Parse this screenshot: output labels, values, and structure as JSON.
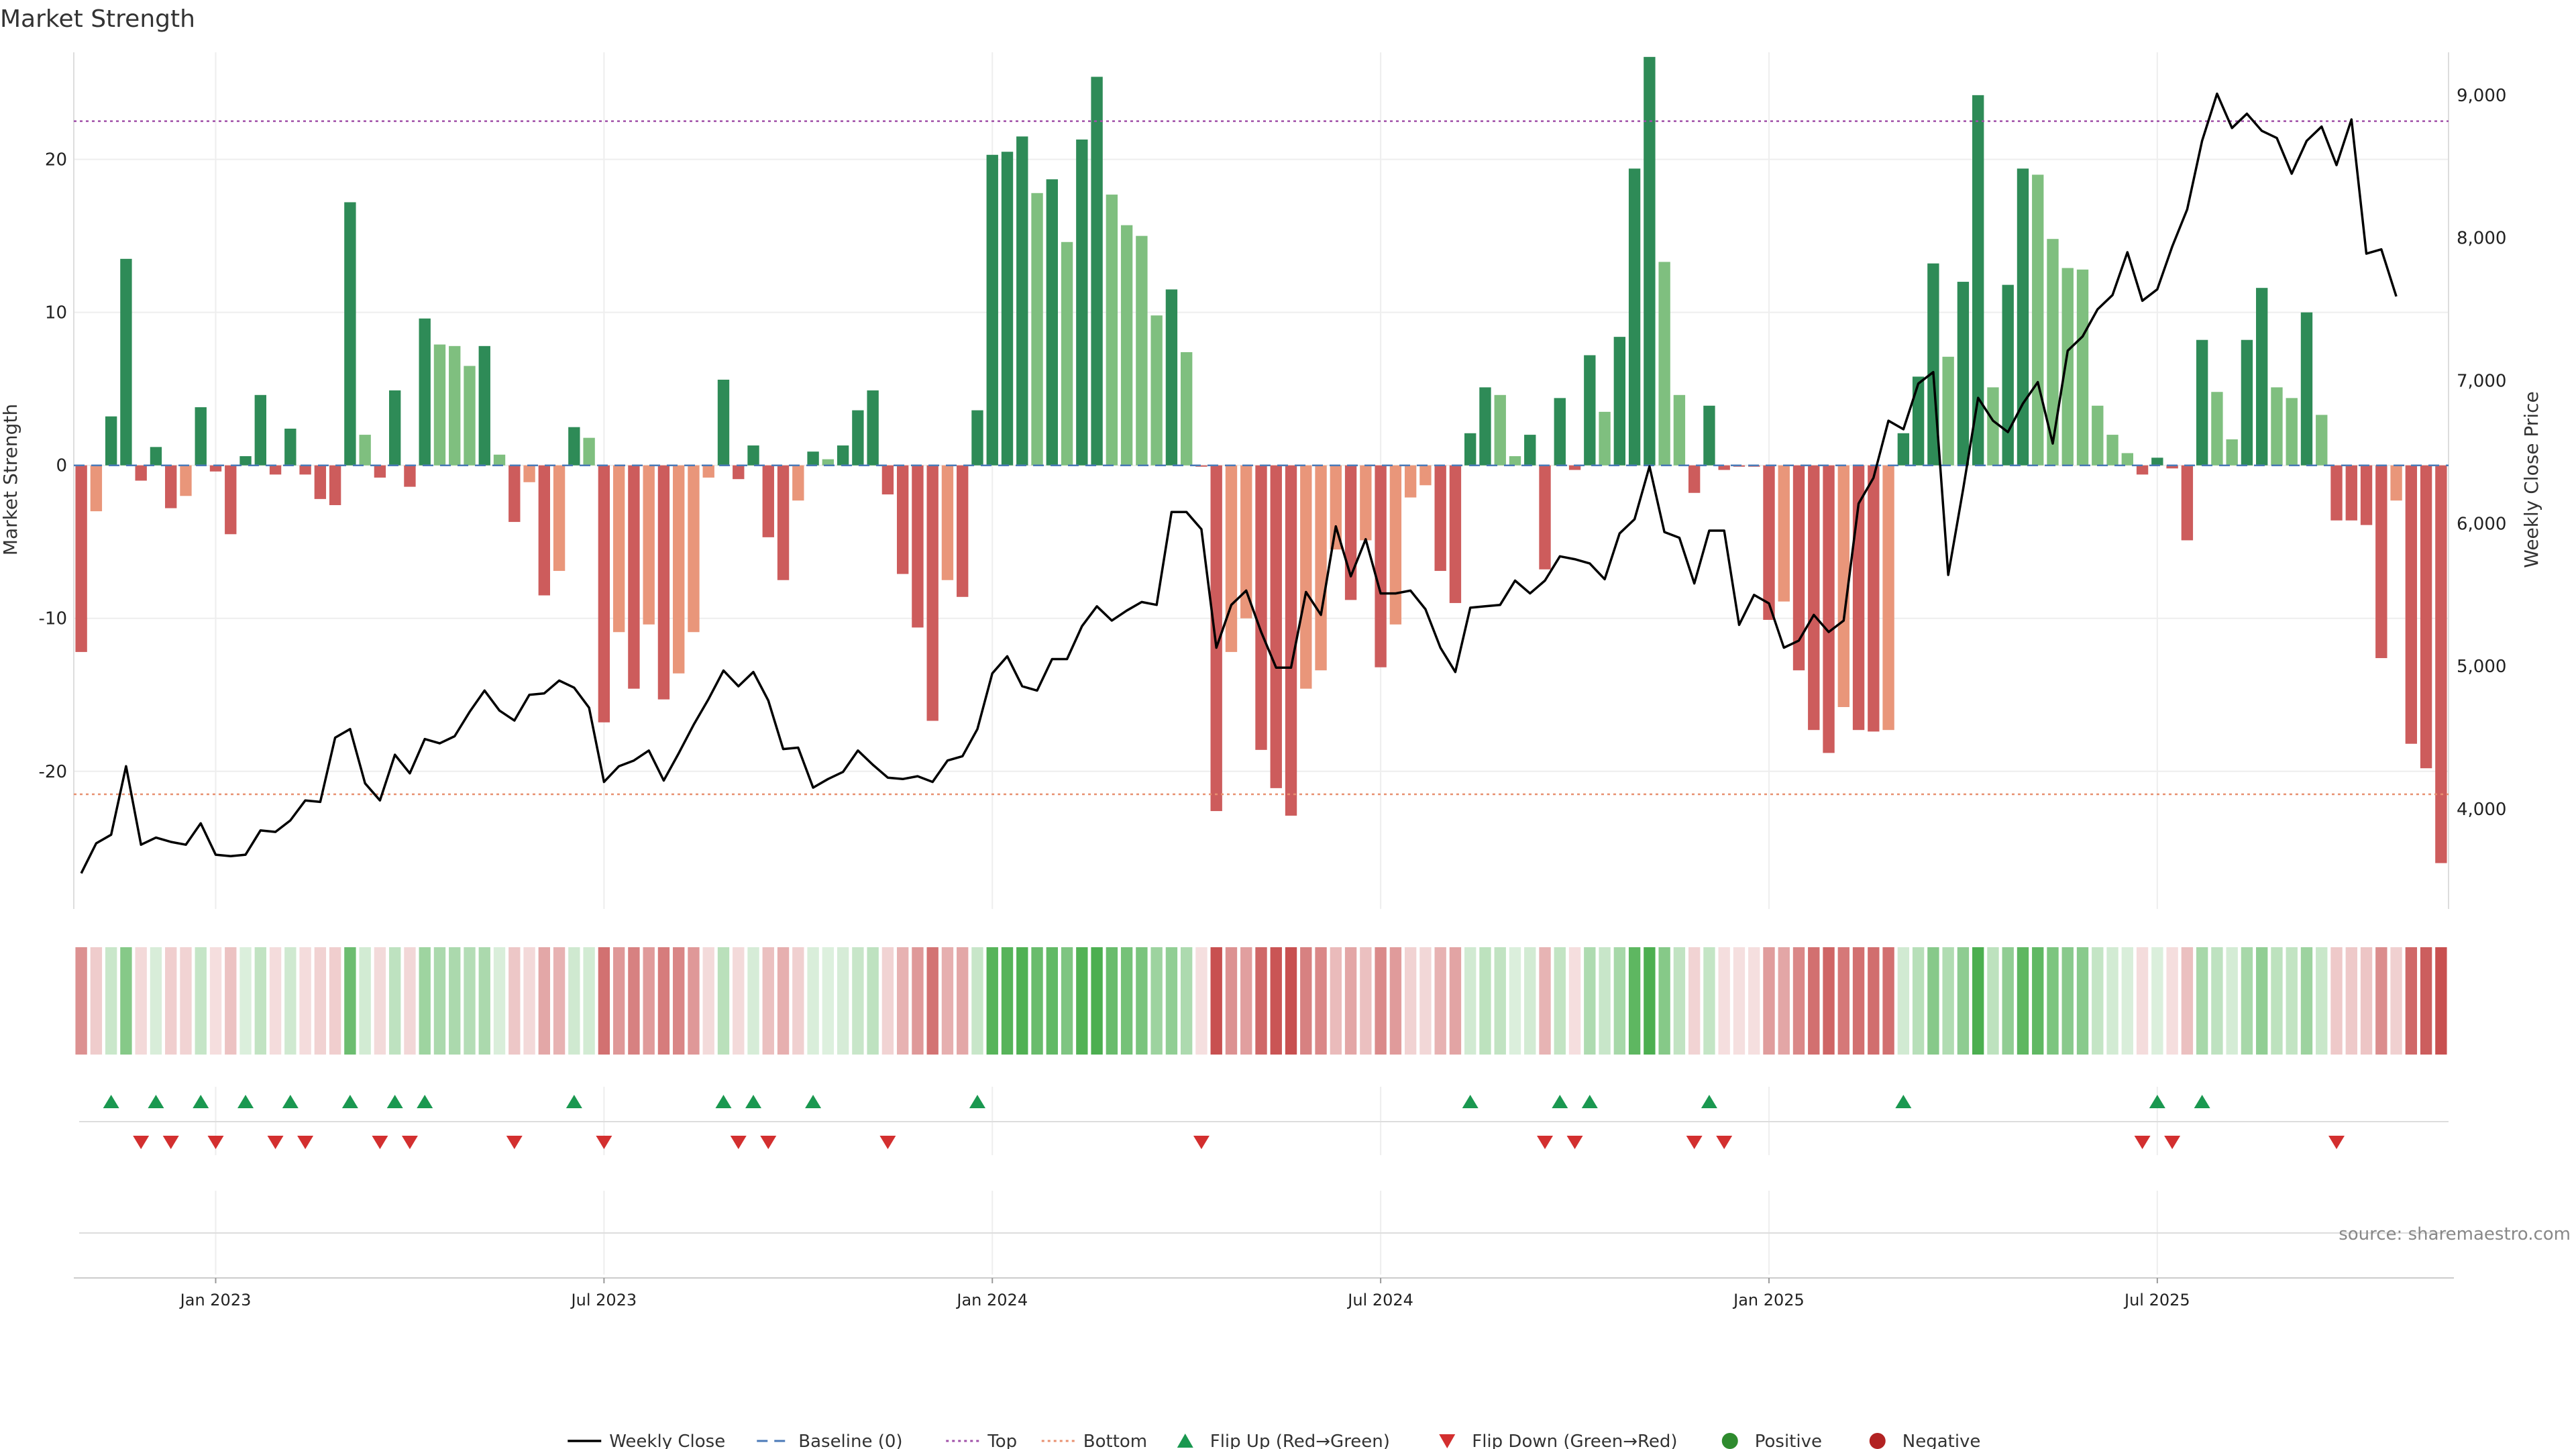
{
  "chart_data": {
    "title": "Market Strength",
    "type": "bar",
    "ylabel": "Market Strength",
    "y2label": "Weekly Close Price",
    "ylim": [
      -29,
      27
    ],
    "y2lim": [
      3300,
      9300
    ],
    "yticks": [
      -20,
      -10,
      0,
      10,
      20
    ],
    "y2ticks": [
      4000,
      5000,
      6000,
      7000,
      8000,
      9000
    ],
    "y2tick_labels": [
      "4,000",
      "5,000",
      "6,000",
      "7,000",
      "8,000",
      "9,000"
    ],
    "xticks": [
      {
        "index": 9,
        "label": "Jan 2023"
      },
      {
        "index": 35,
        "label": "Jul 2023"
      },
      {
        "index": 61,
        "label": "Jan 2024"
      },
      {
        "index": 87,
        "label": "Jul 2024"
      },
      {
        "index": 113,
        "label": "Jan 2025"
      },
      {
        "index": 139,
        "label": "Jul 2025"
      }
    ],
    "top_level": 22.5,
    "bottom_level": -21.5,
    "strength": [
      -12.2,
      -3,
      3.2,
      13.5,
      -1,
      1.2,
      -2.8,
      -2,
      3.8,
      -0.4,
      -4.5,
      0.6,
      4.6,
      -0.6,
      2.4,
      -0.6,
      -2.2,
      -2.6,
      17.2,
      2,
      -0.8,
      4.9,
      -1.4,
      9.6,
      7.9,
      7.8,
      6.5,
      7.8,
      0.7,
      -3.7,
      -1.1,
      -8.5,
      -6.9,
      2.5,
      1.8,
      -16.8,
      -10.9,
      -14.6,
      -10.4,
      -15.3,
      -13.6,
      -10.9,
      -0.8,
      5.6,
      -0.9,
      1.3,
      -4.7,
      -7.5,
      -2.3,
      0.9,
      0.4,
      1.3,
      3.6,
      4.9,
      -1.9,
      -7.1,
      -10.6,
      -16.7,
      -7.5,
      -8.6,
      3.6,
      20.3,
      20.5,
      21.5,
      17.8,
      18.7,
      14.6,
      21.3,
      25.4,
      17.7,
      15.7,
      15,
      9.8,
      11.5,
      7.4,
      0,
      -22.6,
      -12.2,
      -10,
      -18.6,
      -21.1,
      -22.9,
      -14.6,
      -13.4,
      -5.5,
      -8.8,
      -4.9,
      -13.2,
      -10.4,
      -2.1,
      -1.3,
      -6.9,
      -9,
      2.1,
      5.1,
      4.6,
      0.6,
      2,
      -6.8,
      4.4,
      -0.3,
      7.2,
      3.5,
      8.4,
      19.4,
      26.7,
      13.3,
      4.6,
      -1.8,
      3.9,
      -0.3,
      0,
      0,
      -10.1,
      -8.9,
      -13.4,
      -17.3,
      -18.8,
      -15.8,
      -17.3,
      -17.4,
      -17.3,
      2.1,
      5.8,
      13.2,
      7.1,
      12,
      24.2,
      5.1,
      11.8,
      19.4,
      19,
      14.8,
      12.9,
      12.8,
      3.9,
      2,
      0.8,
      -0.6,
      0.5,
      -0.2,
      -4.9,
      8.2,
      4.8,
      1.7,
      8.2,
      11.6,
      5.1,
      4.4,
      10,
      3.3,
      -3.6,
      -3.6,
      -3.9,
      -12.6,
      -2.3,
      -18.2,
      -19.8,
      -26
    ],
    "close": [
      3550,
      3760,
      3820,
      4300,
      3750,
      3800,
      3770,
      3750,
      3900,
      3680,
      3670,
      3680,
      3850,
      3840,
      3920,
      4060,
      4050,
      4500,
      4560,
      4180,
      4060,
      4380,
      4250,
      4490,
      4460,
      4510,
      4680,
      4830,
      4690,
      4620,
      4800,
      4810,
      4900,
      4850,
      4710,
      4190,
      4300,
      4340,
      4410,
      4200,
      4390,
      4590,
      4770,
      4970,
      4860,
      4960,
      4760,
      4420,
      4430,
      4150,
      4210,
      4260,
      4410,
      4310,
      4220,
      4210,
      4230,
      4190,
      4340,
      4370,
      4560,
      4950,
      5070,
      4860,
      4830,
      5050,
      5050,
      5280,
      5420,
      5320,
      5390,
      5450,
      5430,
      6080,
      6080,
      5960,
      5130,
      5430,
      5530,
      5240,
      4990,
      4990,
      5520,
      5360,
      5980,
      5630,
      5890,
      5510,
      5510,
      5530,
      5400,
      5130,
      4960,
      5410,
      5420,
      5430,
      5600,
      5510,
      5600,
      5770,
      5750,
      5720,
      5610,
      5930,
      6030,
      6400,
      5940,
      5900,
      5580,
      5950,
      5950,
      5290,
      5500,
      5440,
      5130,
      5180,
      5360,
      5240,
      5320,
      6140,
      6320,
      6720,
      6660,
      6980,
      7060,
      5640,
      6240,
      6880,
      6720,
      6640,
      6840,
      6990,
      6560,
      7210,
      7310,
      7500,
      7600,
      7900,
      7560,
      7640,
      7940,
      8200,
      8680,
      9010,
      8770,
      8870,
      8750,
      8700,
      8450,
      8680,
      8780,
      8510,
      8830,
      7890,
      7920,
      7590
    ]
  },
  "legend": [
    {
      "label": "Weekly Close",
      "icon": "line",
      "color": "#000000"
    },
    {
      "label": "Baseline (0)",
      "icon": "dash",
      "color": "#4a79b7"
    },
    {
      "label": "Top",
      "icon": "dot",
      "color": "#a050a8"
    },
    {
      "label": "Bottom",
      "icon": "dot",
      "color": "#e89070"
    },
    {
      "label": "Flip Up (Red→Green)",
      "icon": "triangle-up",
      "color": "#1a9850"
    },
    {
      "label": "Flip Down (Green→Red)",
      "icon": "triangle-down",
      "color": "#d32f2f"
    },
    {
      "label": "Positive",
      "icon": "circle",
      "color": "#2e8b2e"
    },
    {
      "label": "Negative",
      "icon": "circle",
      "color": "#b22222"
    }
  ],
  "source": "source: sharemaestro.com",
  "colors": {
    "strong_pos": "#2e8b57",
    "weak_pos": "#7fbf7f",
    "strong_neg": "#cd5c5c",
    "weak_neg": "#e9967a",
    "flip_up": "#1a9850",
    "flip_down": "#d32f2f",
    "close_line": "#000000",
    "top_line": "#a050a8",
    "bottom_line": "#e89070",
    "baseline": "#4a79b7"
  }
}
